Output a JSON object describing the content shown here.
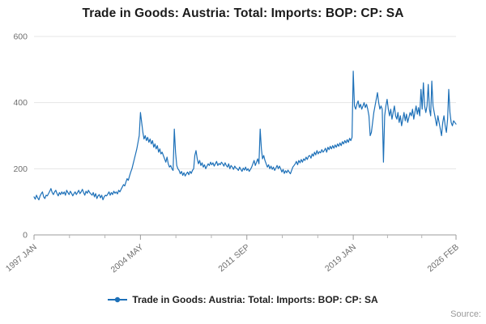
{
  "title": "Trade in Goods: Austria: Total: Imports: BOP: CP: SA",
  "legend": {
    "label": "Trade in Goods: Austria: Total: Imports: BOP: CP: SA"
  },
  "source_label": "Source:",
  "chart_data": {
    "type": "line",
    "title": "Trade in Goods: Austria: Total: Imports: BOP: CP: SA",
    "x_start": "1997 JAN",
    "x_end": "2026 FEB",
    "x_tick_labels": [
      "1997 JAN",
      "2004 MAY",
      "2011 SEP",
      "2019 JAN",
      "2026 FEB"
    ],
    "y_ticks": [
      0,
      200,
      400,
      600
    ],
    "ylim": [
      0,
      600
    ],
    "ylabel": "",
    "xlabel": "",
    "grid": true,
    "legend_position": "bottom",
    "line_color": "#1d70b8",
    "values": [
      115,
      108,
      120,
      112,
      106,
      118,
      125,
      130,
      115,
      110,
      120,
      118,
      125,
      132,
      140,
      128,
      122,
      130,
      135,
      125,
      118,
      128,
      122,
      130,
      124,
      130,
      120,
      135,
      128,
      122,
      132,
      126,
      118,
      125,
      130,
      122,
      128,
      135,
      125,
      130,
      138,
      128,
      120,
      132,
      126,
      135,
      128,
      124,
      120,
      128,
      115,
      125,
      110,
      118,
      122,
      112,
      120,
      106,
      115,
      120,
      118,
      124,
      130,
      120,
      128,
      122,
      132,
      126,
      130,
      124,
      135,
      130,
      138,
      145,
      152,
      148,
      160,
      170,
      165,
      178,
      190,
      200,
      215,
      230,
      245,
      260,
      280,
      300,
      370,
      340,
      310,
      290,
      300,
      285,
      295,
      280,
      290,
      275,
      285,
      265,
      275,
      260,
      270,
      250,
      260,
      245,
      250,
      240,
      230,
      220,
      235,
      215,
      205,
      210,
      200,
      195,
      320,
      250,
      210,
      200,
      195,
      185,
      192,
      180,
      188,
      178,
      185,
      190,
      182,
      192,
      186,
      195,
      200,
      240,
      255,
      230,
      215,
      225,
      210,
      218,
      205,
      212,
      200,
      208,
      215,
      210,
      220,
      212,
      218,
      208,
      215,
      222,
      210,
      216,
      212,
      220,
      215,
      208,
      218,
      210,
      205,
      215,
      200,
      210,
      205,
      198,
      208,
      202,
      200,
      195,
      205,
      198,
      192,
      202,
      196,
      205,
      195,
      200,
      192,
      198,
      205,
      215,
      225,
      210,
      220,
      230,
      215,
      320,
      260,
      230,
      240,
      225,
      215,
      205,
      212,
      200,
      208,
      198,
      205,
      195,
      202,
      210,
      200,
      208,
      200,
      190,
      198,
      186,
      194,
      188,
      196,
      190,
      185,
      195,
      205,
      210,
      215,
      222,
      212,
      225,
      218,
      228,
      220,
      230,
      225,
      235,
      228,
      238,
      240,
      232,
      245,
      238,
      250,
      242,
      255,
      245,
      252,
      248,
      258,
      250,
      255,
      262,
      250,
      265,
      258,
      268,
      260,
      270,
      262,
      272,
      265,
      275,
      268,
      278,
      270,
      282,
      275,
      285,
      278,
      288,
      280,
      292,
      285,
      295,
      495,
      390,
      380,
      395,
      405,
      385,
      395,
      380,
      390,
      400,
      385,
      395,
      380,
      360,
      300,
      310,
      340,
      370,
      390,
      410,
      430,
      400,
      380,
      390,
      380,
      220,
      360,
      390,
      410,
      380,
      360,
      380,
      350,
      370,
      390,
      360,
      350,
      370,
      340,
      360,
      330,
      350,
      370,
      345,
      365,
      340,
      355,
      370,
      360,
      380,
      350,
      370,
      390,
      365,
      385,
      360,
      440,
      380,
      460,
      390,
      370,
      390,
      455,
      380,
      360,
      465,
      390,
      370,
      350,
      330,
      360,
      340,
      320,
      300,
      340,
      360,
      330,
      310,
      350,
      440,
      370,
      340,
      330,
      345,
      340,
      335
    ]
  }
}
